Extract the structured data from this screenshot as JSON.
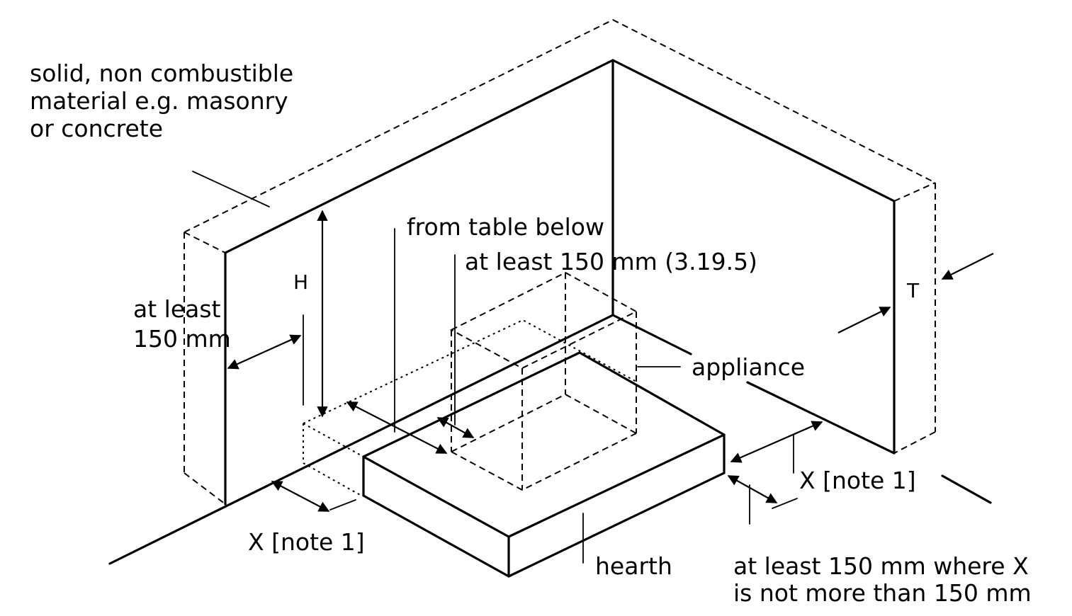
{
  "labels": {
    "material_line1": "solid, non combustible",
    "material_line2": "material e.g. masonry",
    "material_line3": "or concrete",
    "from_table": "from table below",
    "at_least_150_ref": "at least 150 mm (3.19.5)",
    "at_least_line1": "at least",
    "at_least_line2": "150 mm",
    "height_symbol": "H",
    "thickness_symbol": "T",
    "appliance": "appliance",
    "hearth": "hearth",
    "x_note_left": "X [note 1]",
    "x_note_right": "X [note 1]",
    "bottom_note_line1": "at least 150 mm where X",
    "bottom_note_line2": "is not more than 150 mm"
  },
  "colors": {
    "ink": "#000000",
    "background": "#ffffff"
  }
}
